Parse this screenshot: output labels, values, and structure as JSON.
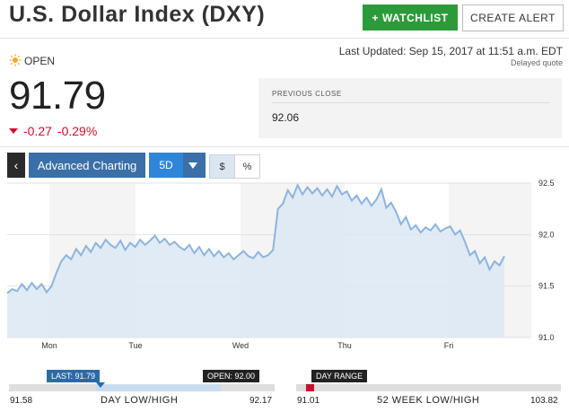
{
  "header": {
    "title": "U.S. Dollar Index (DXY)",
    "watchlist_label": "+ WATCHLIST",
    "create_alert_label": "CREATE ALERT"
  },
  "quote": {
    "status": "OPEN",
    "last_updated": "Last Updated: Sep 15, 2017 at 11:51 a.m. EDT",
    "delayed": "Delayed quote",
    "price": "91.79",
    "change": "-0.27",
    "change_pct": "-0.29%",
    "previous_close_label": "PREVIOUS CLOSE",
    "previous_close": "92.06"
  },
  "toolbar": {
    "back_icon": "chevron-left-icon",
    "advanced_label": "Advanced Charting",
    "range": "5D",
    "dollar": "$",
    "percent": "%"
  },
  "chart_data": {
    "type": "area",
    "x_labels": [
      "Mon",
      "Tue",
      "Wed",
      "Thu",
      "Fri"
    ],
    "y_ticks": [
      "92.5",
      "92.0",
      "91.5",
      "91.0"
    ],
    "ylim": [
      91.0,
      92.5
    ],
    "series": [
      {
        "values": [
          91.43,
          91.47,
          91.45,
          91.52,
          91.46,
          91.53,
          91.47,
          91.52,
          91.44,
          91.5,
          91.63,
          91.74,
          91.8,
          91.76,
          91.86,
          91.8,
          91.89,
          91.83,
          91.92,
          91.87,
          91.95,
          91.9,
          91.87,
          91.94,
          91.85,
          91.92,
          91.88,
          91.95,
          91.9,
          91.94,
          91.99,
          91.92,
          91.96,
          91.9,
          91.93,
          91.88,
          91.85,
          91.9,
          91.82,
          91.88,
          91.8,
          91.86,
          91.79,
          91.84,
          91.78,
          91.82,
          91.76,
          91.8,
          91.84,
          91.79,
          91.77,
          91.83,
          91.78,
          91.8,
          91.85,
          92.25,
          92.3,
          92.43,
          92.36,
          92.48,
          92.39,
          92.46,
          92.4,
          92.45,
          92.38,
          92.44,
          92.37,
          92.47,
          92.39,
          92.42,
          92.33,
          92.38,
          92.3,
          92.36,
          92.28,
          92.34,
          92.44,
          92.26,
          92.31,
          92.22,
          92.1,
          92.17,
          92.05,
          92.09,
          92.02,
          92.07,
          92.04,
          92.1,
          92.03,
          92.06,
          92.08,
          92.0,
          92.04,
          91.93,
          91.8,
          91.84,
          91.72,
          91.78,
          91.66,
          91.74,
          91.7,
          91.79
        ],
        "color": "#8db4de"
      }
    ],
    "grid": true,
    "shaded_columns": true
  },
  "ranges": {
    "day_low": "91.58",
    "day_high": "92.17",
    "day_label": "DAY LOW/HIGH",
    "last_tag": "LAST: 91.79",
    "open_tag": "OPEN: 92.00",
    "last": 91.79,
    "open": 92.0,
    "wk_low": "91.01",
    "wk_high": "103.82",
    "wk_label": "52 WEEK LOW/HIGH",
    "day_range_tag": "DAY RANGE",
    "wk_day_low": 91.58,
    "wk_day_high": 92.17
  }
}
